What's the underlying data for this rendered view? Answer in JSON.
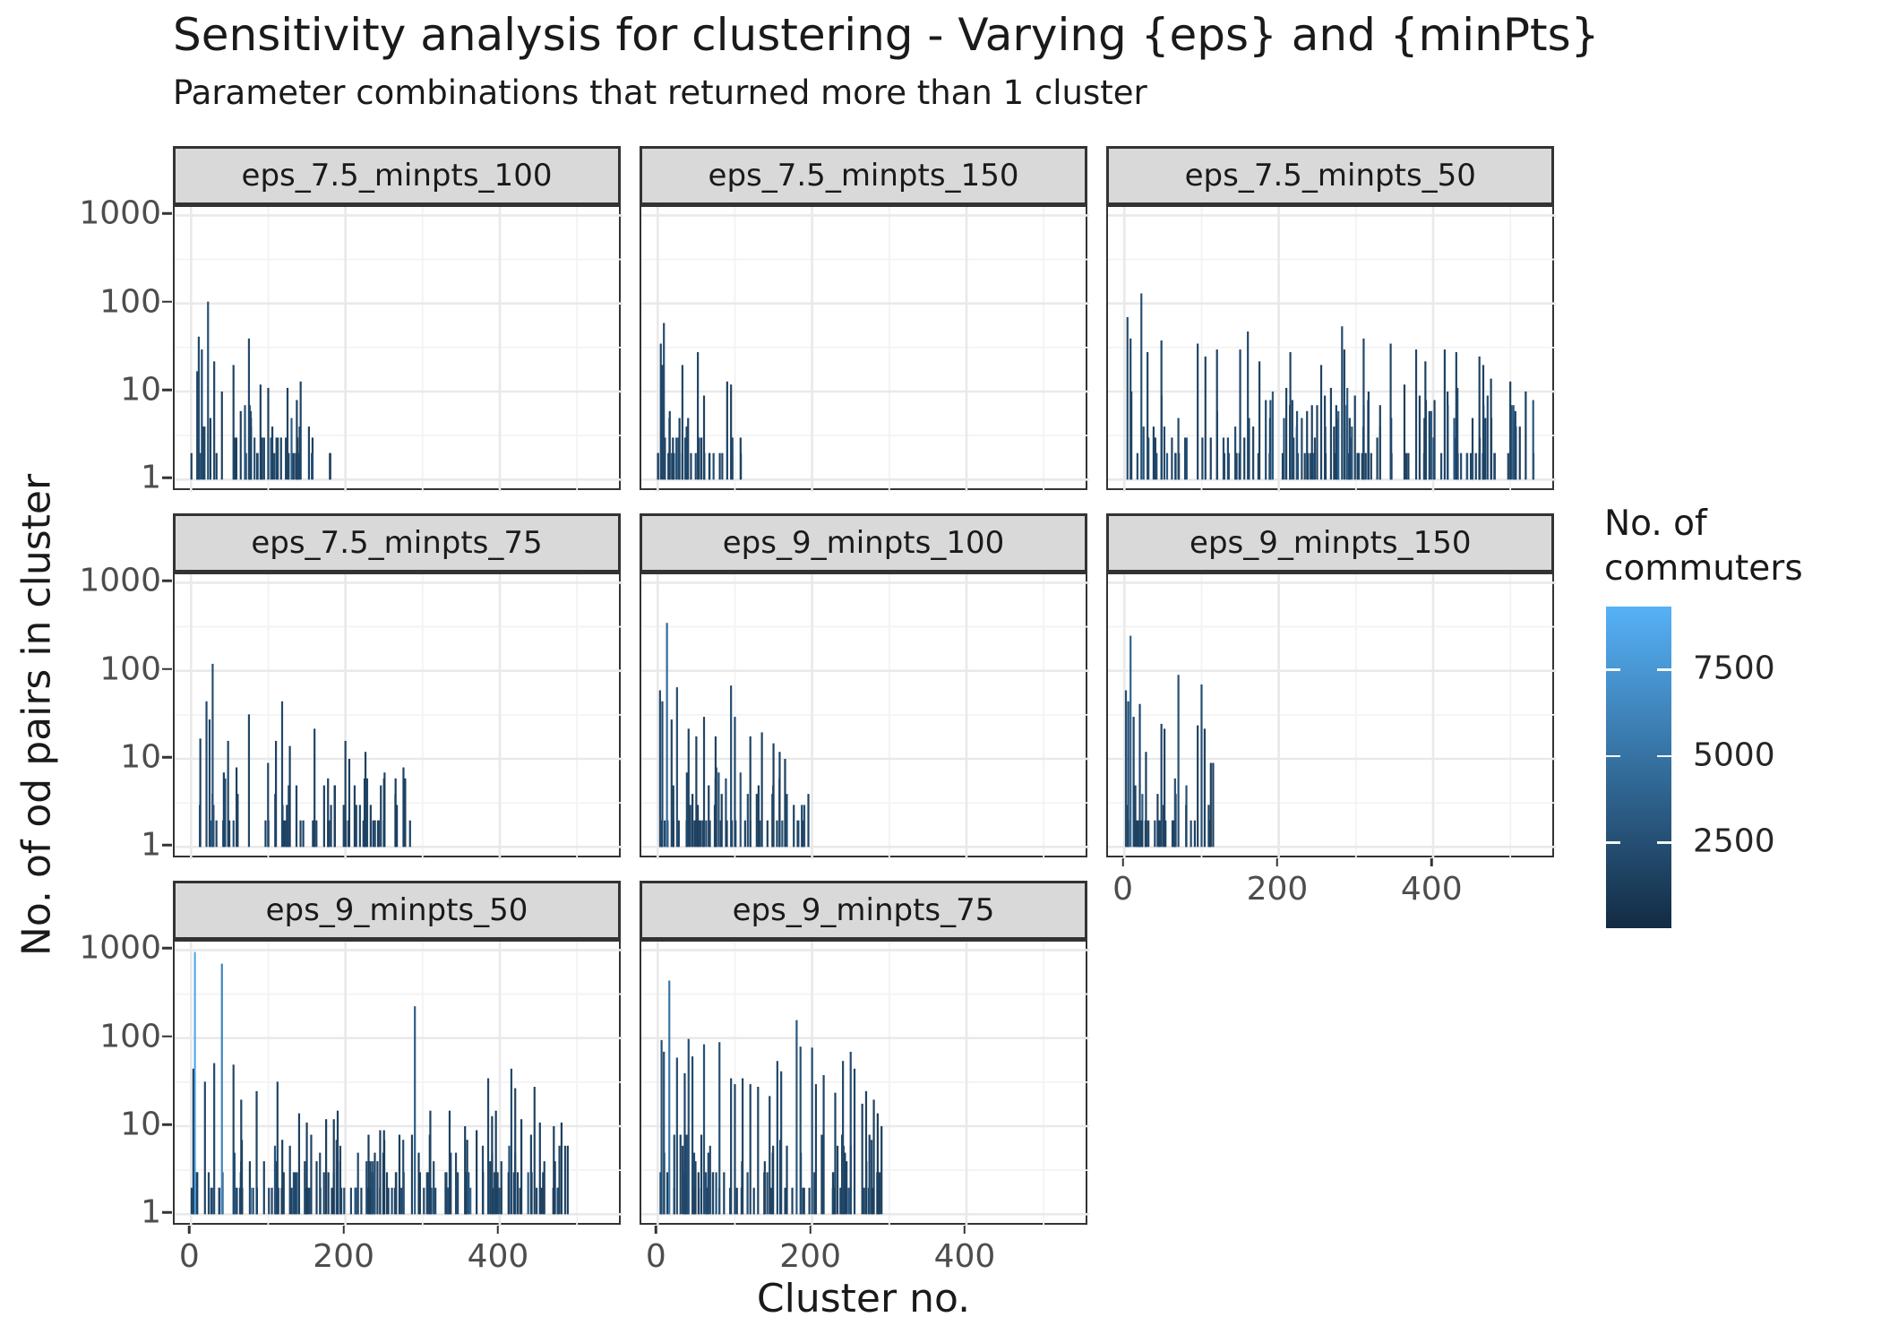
{
  "title": "Sensitivity analysis for clustering - Varying {eps} and {minPts}",
  "subtitle": "Parameter combinations that returned more than 1 cluster",
  "axes": {
    "x_title": "Cluster no.",
    "y_title": "No. of od pairs in cluster",
    "x_ticks": [
      0,
      200,
      400
    ],
    "y_ticks": [
      1000,
      100,
      10,
      1
    ]
  },
  "theme": {
    "strip_bg": "#d9d9d9",
    "strip_border": "#333333",
    "panel_border": "#333333",
    "grid_major": "#e9e9e9",
    "grid_minor": "#f3f3f3",
    "tick_text": "#4d4d4d",
    "text": "#1a1a1a"
  },
  "legend": {
    "title_lines": [
      "No. of",
      "commuters"
    ],
    "labels": [
      "7500",
      "5000",
      "2500"
    ],
    "values": [
      7500,
      5000,
      2500
    ],
    "domain": [
      0,
      9300
    ],
    "color_low": "#132B43",
    "color_mid": "#346E9D",
    "color_high": "#56B1F7"
  },
  "chart_data": {
    "type": "bar",
    "y_scale": "log10",
    "ylim_shown": [
      0.72,
      1244
    ],
    "x_range_shown": [
      -21,
      559
    ],
    "x_ticks": [
      0,
      200,
      400
    ],
    "y_ticks": [
      1,
      10,
      100,
      1000
    ],
    "xlabel": "Cluster no.",
    "ylabel": "No. of od pairs in cluster",
    "legend_title": "No. of commuters",
    "layout": "facet_wrap 3 columns, 8 panels, bottom-right cell empty",
    "facets": [
      {
        "label": "eps_7.5_minpts_100",
        "row": 0,
        "col": 0,
        "show_x_axis": false,
        "x_extent": [
          0,
          190
        ],
        "peak_value": 105,
        "peaks": [
          [
            22,
            105,
            2600
          ],
          [
            10,
            42,
            2100
          ],
          [
            75,
            40,
            2100
          ],
          [
            14,
            30,
            2000
          ],
          [
            30,
            22,
            1900
          ],
          [
            55,
            20,
            1800
          ],
          [
            8,
            17,
            1800
          ],
          [
            142,
            13,
            1700
          ],
          [
            90,
            12,
            1600
          ],
          [
            125,
            11,
            1600
          ],
          [
            100,
            11,
            1500
          ],
          [
            40,
            10,
            1500
          ]
        ],
        "filler": {
          "seed": 11,
          "n": 48,
          "x_max": 185,
          "v_cap": 9
        }
      },
      {
        "label": "eps_7.5_minpts_150",
        "row": 0,
        "col": 1,
        "show_x_axis": false,
        "x_extent": [
          0,
          110
        ],
        "peak_value": 60,
        "peaks": [
          [
            8,
            60,
            2300
          ],
          [
            4,
            35,
            2000
          ],
          [
            52,
            28,
            1900
          ],
          [
            32,
            20,
            1800
          ],
          [
            6,
            20,
            1800
          ],
          [
            90,
            13,
            1600
          ],
          [
            95,
            12,
            1600
          ],
          [
            60,
            9,
            1500
          ]
        ],
        "filler": {
          "seed": 22,
          "n": 32,
          "x_max": 108,
          "v_cap": 7
        }
      },
      {
        "label": "eps_7.5_minpts_50",
        "row": 0,
        "col": 2,
        "show_x_axis": false,
        "x_extent": [
          0,
          537
        ],
        "peak_value": 130,
        "peaks": [
          [
            22,
            130,
            2700
          ],
          [
            4,
            70,
            2300
          ],
          [
            160,
            48,
            2100
          ],
          [
            8,
            40,
            2000
          ],
          [
            48,
            38,
            2000
          ],
          [
            310,
            40,
            2000
          ],
          [
            95,
            35,
            1900
          ],
          [
            345,
            35,
            1900
          ],
          [
            282,
            55,
            2200
          ],
          [
            30,
            28,
            1800
          ],
          [
            120,
            30,
            1800
          ],
          [
            150,
            30,
            1800
          ],
          [
            378,
            30,
            1800
          ],
          [
            415,
            30,
            1800
          ],
          [
            430,
            28,
            1700
          ],
          [
            105,
            25,
            1700
          ],
          [
            460,
            25,
            1700
          ],
          [
            215,
            28,
            1700
          ],
          [
            175,
            22,
            1600
          ],
          [
            390,
            22,
            1600
          ],
          [
            255,
            20,
            1600
          ],
          [
            465,
            20,
            1600
          ],
          [
            475,
            14,
            1500
          ],
          [
            500,
            13,
            1500
          ],
          [
            520,
            10,
            1400
          ],
          [
            285,
            30,
            1800
          ]
        ],
        "filler": {
          "seed": 33,
          "n": 135,
          "x_max": 530,
          "v_cap": 12
        }
      },
      {
        "label": "eps_7.5_minpts_75",
        "row": 1,
        "col": 0,
        "show_x_axis": false,
        "x_extent": [
          0,
          290
        ],
        "peak_value": 120,
        "peaks": [
          [
            28,
            120,
            2600
          ],
          [
            20,
            45,
            2100
          ],
          [
            118,
            45,
            2100
          ],
          [
            75,
            32,
            1900
          ],
          [
            24,
            28,
            1800
          ],
          [
            160,
            22,
            1700
          ],
          [
            12,
            17,
            1600
          ],
          [
            48,
            16,
            1600
          ],
          [
            200,
            16,
            1600
          ],
          [
            110,
            16,
            1600
          ],
          [
            128,
            14,
            1500
          ],
          [
            226,
            12,
            1500
          ],
          [
            205,
            10,
            1400
          ],
          [
            250,
            6,
            1300
          ],
          [
            265,
            6,
            1300
          ]
        ],
        "filler": {
          "seed": 44,
          "n": 60,
          "x_max": 285,
          "v_cap": 9
        }
      },
      {
        "label": "eps_9_minpts_100",
        "row": 1,
        "col": 1,
        "show_x_axis": false,
        "x_extent": [
          0,
          200
        ],
        "peak_value": 350,
        "peaks": [
          [
            12,
            350,
            4500
          ],
          [
            95,
            68,
            2400
          ],
          [
            25,
            65,
            2300
          ],
          [
            3,
            60,
            2300
          ],
          [
            6,
            45,
            2100
          ],
          [
            60,
            30,
            1900
          ],
          [
            100,
            30,
            1900
          ],
          [
            18,
            28,
            1800
          ],
          [
            40,
            22,
            1700
          ],
          [
            135,
            20,
            1700
          ],
          [
            50,
            18,
            1600
          ],
          [
            75,
            18,
            1600
          ],
          [
            120,
            18,
            1600
          ],
          [
            150,
            15,
            1500
          ],
          [
            158,
            12,
            1500
          ],
          [
            165,
            10,
            1400
          ]
        ],
        "filler": {
          "seed": 55,
          "n": 52,
          "x_max": 198,
          "v_cap": 8
        }
      },
      {
        "label": "eps_9_minpts_150",
        "row": 1,
        "col": 2,
        "show_x_axis": true,
        "x_extent": [
          0,
          115
        ],
        "peak_value": 250,
        "peaks": [
          [
            8,
            250,
            3800
          ],
          [
            100,
            70,
            2400
          ],
          [
            70,
            90,
            2500
          ],
          [
            2,
            60,
            2300
          ],
          [
            5,
            45,
            2100
          ],
          [
            20,
            42,
            2000
          ],
          [
            48,
            25,
            1800
          ],
          [
            52,
            22,
            1700
          ],
          [
            95,
            24,
            1700
          ],
          [
            104,
            22,
            1700
          ],
          [
            12,
            30,
            1900
          ],
          [
            28,
            12,
            1500
          ],
          [
            112,
            9,
            1400
          ],
          [
            115,
            9,
            1400
          ]
        ],
        "filler": {
          "seed": 66,
          "n": 30,
          "x_max": 113,
          "v_cap": 6
        }
      },
      {
        "label": "eps_9_minpts_50",
        "row": 2,
        "col": 0,
        "show_x_axis": true,
        "x_extent": [
          0,
          490
        ],
        "peak_value": 950,
        "peaks": [
          [
            5,
            950,
            8800
          ],
          [
            40,
            700,
            6300
          ],
          [
            290,
            230,
            3400
          ],
          [
            30,
            52,
            2200
          ],
          [
            55,
            50,
            2100
          ],
          [
            3,
            45,
            2100
          ],
          [
            415,
            45,
            2100
          ],
          [
            385,
            35,
            1900
          ],
          [
            112,
            32,
            1900
          ],
          [
            18,
            32,
            1900
          ],
          [
            445,
            28,
            1800
          ],
          [
            420,
            27,
            1800
          ],
          [
            85,
            25,
            1700
          ],
          [
            65,
            20,
            1600
          ],
          [
            190,
            15,
            1500
          ],
          [
            310,
            15,
            1500
          ],
          [
            335,
            15,
            1500
          ],
          [
            395,
            15,
            1500
          ],
          [
            140,
            14,
            1500
          ],
          [
            390,
            13,
            1500
          ],
          [
            175,
            12,
            1400
          ],
          [
            185,
            12,
            1400
          ],
          [
            428,
            12,
            1400
          ],
          [
            150,
            11,
            1400
          ],
          [
            452,
            11,
            1400
          ],
          [
            480,
            11,
            1400
          ],
          [
            355,
            10,
            1400
          ],
          [
            470,
            10,
            1400
          ],
          [
            245,
            9,
            1300
          ],
          [
            250,
            9,
            1300
          ],
          [
            370,
            9,
            1300
          ],
          [
            230,
            8,
            1300
          ],
          [
            270,
            8,
            1300
          ],
          [
            295,
            5,
            1200
          ],
          [
            488,
            6,
            1200
          ]
        ],
        "filler": {
          "seed": 77,
          "n": 145,
          "x_max": 487,
          "v_cap": 8
        }
      },
      {
        "label": "eps_9_minpts_75",
        "row": 2,
        "col": 1,
        "show_x_axis": true,
        "x_extent": [
          0,
          295
        ],
        "peak_value": 450,
        "peaks": [
          [
            15,
            450,
            5200
          ],
          [
            180,
            160,
            3000
          ],
          [
            40,
            98,
            2600
          ],
          [
            5,
            95,
            2600
          ],
          [
            80,
            90,
            2500
          ],
          [
            60,
            85,
            2500
          ],
          [
            185,
            80,
            2400
          ],
          [
            200,
            78,
            2400
          ],
          [
            250,
            70,
            2300
          ],
          [
            8,
            70,
            2300
          ],
          [
            45,
            62,
            2200
          ],
          [
            25,
            60,
            2200
          ],
          [
            155,
            55,
            2100
          ],
          [
            240,
            55,
            2100
          ],
          [
            255,
            45,
            2000
          ],
          [
            160,
            42,
            2000
          ],
          [
            35,
            40,
            1900
          ],
          [
            215,
            38,
            1900
          ],
          [
            95,
            35,
            1800
          ],
          [
            110,
            35,
            1800
          ],
          [
            100,
            30,
            1700
          ],
          [
            120,
            30,
            1700
          ],
          [
            205,
            30,
            1700
          ],
          [
            130,
            28,
            1700
          ],
          [
            270,
            25,
            1600
          ],
          [
            230,
            24,
            1600
          ],
          [
            145,
            22,
            1600
          ],
          [
            280,
            20,
            1500
          ],
          [
            265,
            18,
            1500
          ],
          [
            285,
            14,
            1400
          ],
          [
            290,
            10,
            1300
          ]
        ],
        "filler": {
          "seed": 88,
          "n": 75,
          "x_max": 292,
          "v_cap": 9
        }
      }
    ]
  }
}
